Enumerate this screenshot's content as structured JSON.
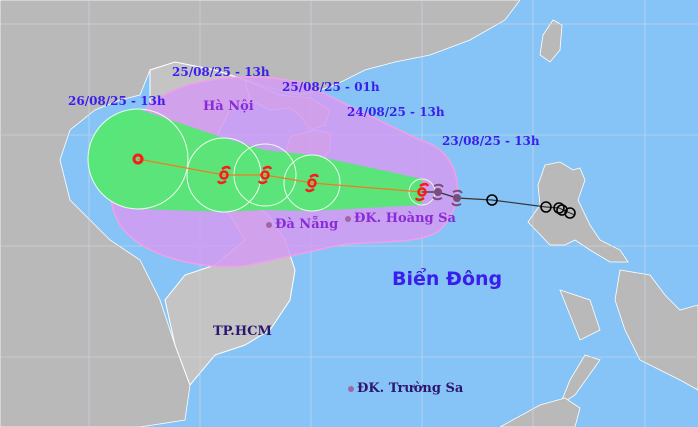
{
  "map": {
    "sea_label": "Biển Đông",
    "forecast_labels": [
      "26/08/25 - 13h",
      "25/08/25 - 13h",
      "25/08/25 - 01h",
      "24/08/25 - 13h",
      "23/08/25 - 13h"
    ],
    "places": {
      "hanoi": "Hà Nội",
      "danang": "Đà Nẵng",
      "hoangsa": "ĐK. Hoàng Sa",
      "hcm": "TP.HCM",
      "truongsa": "ĐK. Trường Sa"
    },
    "colors": {
      "sea": "#86c4f8",
      "land": "#b9b9b9",
      "risk_zone": "#cf9cf0",
      "strong_wind_zone": "#4fe67a",
      "storm_symbol": "#ff1a1a",
      "past_track": "#000000"
    },
    "icons": [
      "typhoon-icon",
      "tropical-depression-icon",
      "past-position-circle-icon"
    ]
  }
}
